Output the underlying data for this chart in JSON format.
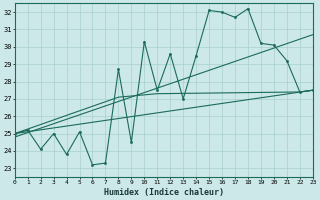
{
  "xlabel": "Humidex (Indice chaleur)",
  "xlim": [
    0,
    23
  ],
  "ylim": [
    22.5,
    32.5
  ],
  "xticks": [
    0,
    1,
    2,
    3,
    4,
    5,
    6,
    7,
    8,
    9,
    10,
    11,
    12,
    13,
    14,
    15,
    16,
    17,
    18,
    19,
    20,
    21,
    22,
    23
  ],
  "yticks": [
    23,
    24,
    25,
    26,
    27,
    28,
    29,
    30,
    31,
    32
  ],
  "bg_color": "#cde8e8",
  "line_color": "#1a6b5a",
  "grid_color": "#a8d0d0",
  "main_x": [
    0,
    1,
    2,
    3,
    4,
    5,
    6,
    7,
    8,
    9,
    10,
    11,
    12,
    13,
    14,
    15,
    16,
    17,
    18,
    19,
    20,
    21,
    22,
    23
  ],
  "main_y": [
    25.0,
    25.2,
    24.1,
    25.0,
    23.8,
    25.1,
    23.2,
    23.3,
    28.7,
    24.5,
    30.3,
    27.5,
    29.6,
    27.0,
    29.5,
    32.1,
    32.0,
    31.7,
    32.2,
    30.2,
    30.1,
    29.2,
    27.4,
    27.5
  ],
  "line1_x": [
    0,
    23
  ],
  "line1_y": [
    25.0,
    27.5
  ],
  "line2_x": [
    0,
    23
  ],
  "line2_y": [
    24.8,
    30.7
  ],
  "line3_x": [
    0,
    8,
    11,
    22,
    23
  ],
  "line3_y": [
    25.0,
    27.1,
    27.3,
    27.4,
    27.5
  ]
}
